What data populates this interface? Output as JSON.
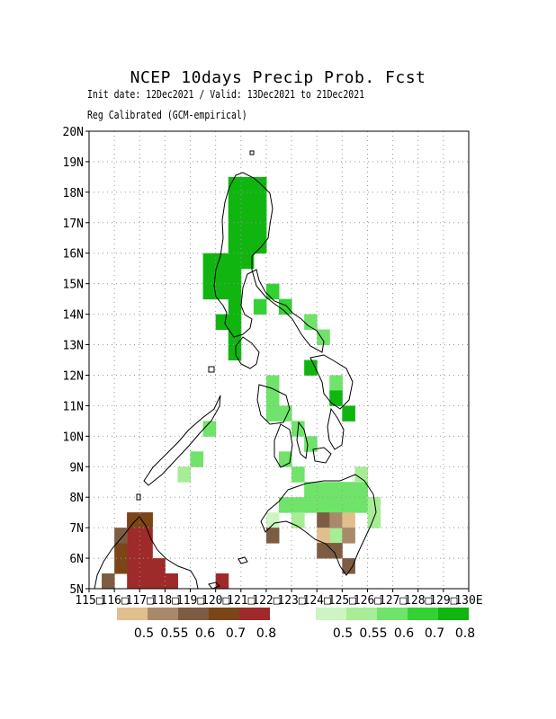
{
  "title": "NCEP 10days Precip Prob. Fcst",
  "subtitle_dates": "Init date: 12Dec2021 / Valid: 13Dec2021 to 21Dec2021",
  "subtitle_method": "Reg Calibrated (GCM-empirical)",
  "map": {
    "lon_range": [
      115,
      130
    ],
    "lat_range": [
      5,
      20
    ],
    "grid_step_deg": 1,
    "gridlines": "dotted",
    "lat_labels": [
      "5N",
      "6N",
      "7N",
      "8N",
      "9N",
      "10N",
      "11N",
      "12N",
      "13N",
      "14N",
      "15N",
      "16N",
      "17N",
      "18N",
      "19N",
      "20N"
    ],
    "lon_labels": [
      "115E",
      "116E",
      "117E",
      "118E",
      "119E",
      "120E",
      "121E",
      "122E",
      "123E",
      "124E",
      "125E",
      "126E",
      "127E",
      "128E",
      "129E",
      "130E"
    ],
    "lon_label_display": [
      "115□",
      "116□",
      "117□",
      "118□",
      "119□",
      "120□",
      "121□",
      "122□",
      "123□",
      "124□",
      "125□",
      "126□",
      "127□",
      "128□",
      "129□",
      "130E"
    ]
  },
  "legend_dry": {
    "colors": [
      "#e0bf8c",
      "#a88a6b",
      "#7d5c41",
      "#7b4518",
      "#9e2a2a"
    ],
    "labels": [
      "0.5",
      "0.55",
      "0.6",
      "0.7",
      "0.8"
    ]
  },
  "legend_wet": {
    "colors": [
      "#ccf5c2",
      "#a6ed96",
      "#6fe36a",
      "#33d133",
      "#10b510"
    ],
    "labels": [
      "0.5",
      "0.55",
      "0.6",
      "0.7",
      "0.8"
    ]
  },
  "colors": {
    "dry_max": "#9e2a2a",
    "wet_max": "#10b510",
    "coastline": "#000000"
  }
}
